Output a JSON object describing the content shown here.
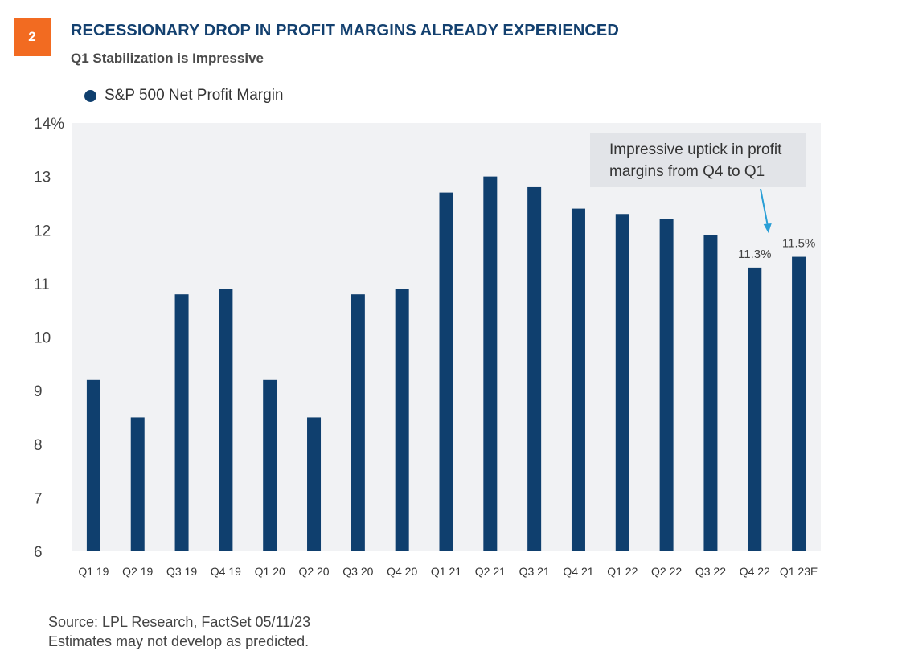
{
  "header": {
    "badge": "2",
    "title": "RECESSIONARY DROP IN PROFIT MARGINS ALREADY EXPERIENCED",
    "subtitle": "Q1 Stabilization is Impressive"
  },
  "legend": {
    "label": "S&P 500 Net Profit Margin"
  },
  "annotation": {
    "line1": "Impressive uptick in profit",
    "line2": "margins from Q4 to Q1"
  },
  "footer": {
    "source": "Source: LPL Research, FactSet  05/11/23",
    "disclaimer": "Estimates may not develop as predicted."
  },
  "colors": {
    "bar": "#0f3f6e",
    "plot_bg": "#f1f2f4",
    "accent": "#f26b21",
    "arrow": "#2a9fd6"
  },
  "chart_data": {
    "type": "bar",
    "categories": [
      "Q1 19",
      "Q2 19",
      "Q3 19",
      "Q4 19",
      "Q1 20",
      "Q2 20",
      "Q3 20",
      "Q4 20",
      "Q1 21",
      "Q2 21",
      "Q3 21",
      "Q4 21",
      "Q1 22",
      "Q2 22",
      "Q3 22",
      "Q4 22",
      "Q1 23E"
    ],
    "series": [
      {
        "name": "S&P 500 Net Profit Margin",
        "values": [
          9.2,
          8.5,
          10.8,
          10.9,
          9.2,
          8.5,
          10.8,
          10.9,
          12.7,
          13.0,
          12.8,
          12.4,
          12.3,
          12.2,
          11.9,
          11.3,
          11.5
        ]
      }
    ],
    "data_labels": [
      {
        "category": "Q4 22",
        "text": "11.3%"
      },
      {
        "category": "Q1 23E",
        "text": "11.5%"
      }
    ],
    "yticks": [
      "6",
      "7",
      "8",
      "9",
      "10",
      "11",
      "12",
      "13",
      "14%"
    ],
    "ylim": [
      6,
      14
    ],
    "title": "RECESSIONARY DROP IN PROFIT MARGINS ALREADY EXPERIENCED",
    "subtitle": "Q1 Stabilization is Impressive",
    "legend": "top-left",
    "grid": false
  }
}
